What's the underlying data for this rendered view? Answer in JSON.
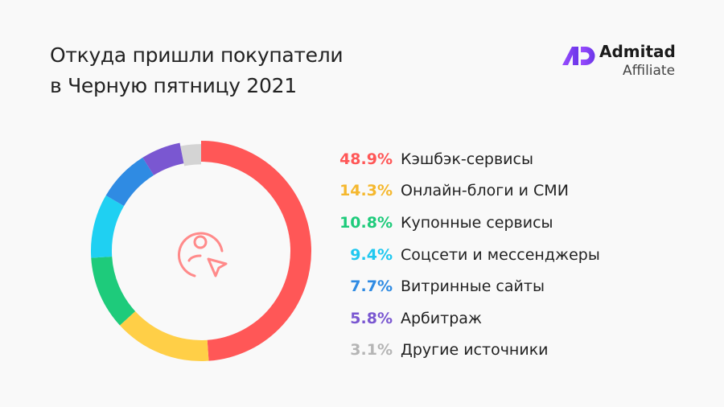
{
  "title": [
    "Откуда пришли покупатели",
    "в Черную пятницу 2021"
  ],
  "logo": {
    "name": "Admitad",
    "subtitle": "Affiliate",
    "color": "#7B3FF2"
  },
  "center_icon": "user-cursor-icon",
  "chart_data": {
    "type": "pie",
    "variant": "donut",
    "title": "Откуда пришли покупатели в Черную пятницу 2021",
    "unit": "%",
    "legend": "right",
    "categories": [
      "Кэшбэк-сервисы",
      "Онлайн-блоги и СМИ",
      "Купонные сервисы",
      "Соцсети и мессенджеры",
      "Витринные сайты",
      "Арбитраж",
      "Другие источники"
    ],
    "values": [
      48.9,
      14.3,
      10.8,
      9.4,
      7.7,
      5.8,
      3.1
    ],
    "labels": [
      "48.9%",
      "14.3%",
      "10.8%",
      "9.4%",
      "7.7%",
      "5.8%",
      "3.1%"
    ],
    "colors": [
      "#FF5757",
      "#FFCF47",
      "#1ECB7B",
      "#1FD0F2",
      "#2F8BE3",
      "#7A57D1",
      "#D4D4D4"
    ],
    "label_colors": [
      "#FF5757",
      "#F5B82E",
      "#1ECB7B",
      "#1FC8F0",
      "#2F8BE3",
      "#7A57D1",
      "#B5B5B5"
    ]
  }
}
